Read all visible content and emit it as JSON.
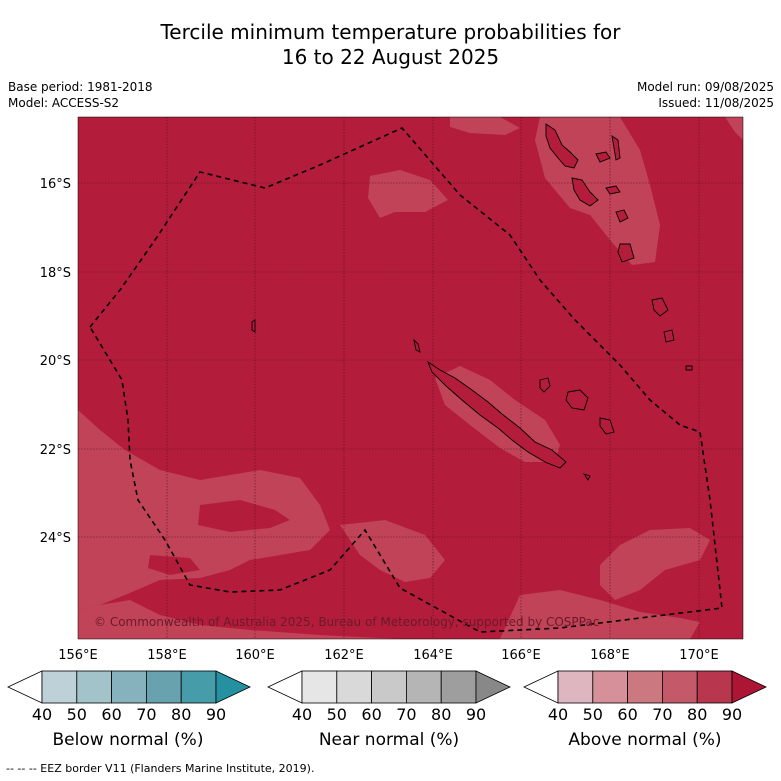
{
  "title": {
    "line1": "Tercile minimum temperature probabilities for",
    "line2": "16 to 22 August 2025"
  },
  "meta": {
    "base_period": "Base period: 1981-2018",
    "model": "Model: ACCESS-S2",
    "model_run": "Model run: 09/08/2025",
    "issued": "Issued: 11/08/2025"
  },
  "map": {
    "lon_labels": [
      "156°E",
      "158°E",
      "160°E",
      "162°E",
      "164°E",
      "166°E",
      "168°E",
      "170°E"
    ],
    "lat_labels": [
      "16°S",
      "18°S",
      "20°S",
      "22°S",
      "24°S"
    ],
    "copyright": "© Commonwealth of Australia 2025, Bureau of Meteorology, supported by COSPPac",
    "colors": {
      "above_80": "#b31d3b",
      "above_70": "#c14358",
      "coast": "#000000",
      "eez": "#000000"
    }
  },
  "colorbars": [
    {
      "name": "below",
      "label": "Below normal (%)",
      "ticks": [
        "40",
        "50",
        "60",
        "70",
        "80",
        "90"
      ],
      "colors": [
        "#bed1d8",
        "#a3c3ca",
        "#85b2bc",
        "#67a2ae",
        "#469ca9",
        "#2590a0"
      ]
    },
    {
      "name": "near",
      "label": "Near normal (%)",
      "ticks": [
        "40",
        "50",
        "60",
        "70",
        "80",
        "90"
      ],
      "colors": [
        "#e6e6e6",
        "#d9d9d9",
        "#c9c9c9",
        "#b5b5b5",
        "#9e9e9e",
        "#888888"
      ]
    },
    {
      "name": "above",
      "label": "Above normal (%)",
      "ticks": [
        "40",
        "50",
        "60",
        "70",
        "80",
        "90"
      ],
      "colors": [
        "#deb6bf",
        "#d69099",
        "#cc7880",
        "#c45a69",
        "#b8374f",
        "#ad1535"
      ]
    }
  ],
  "footnote": "--  --  -- EEZ border V11 (Flanders Marine Institute, 2019)."
}
